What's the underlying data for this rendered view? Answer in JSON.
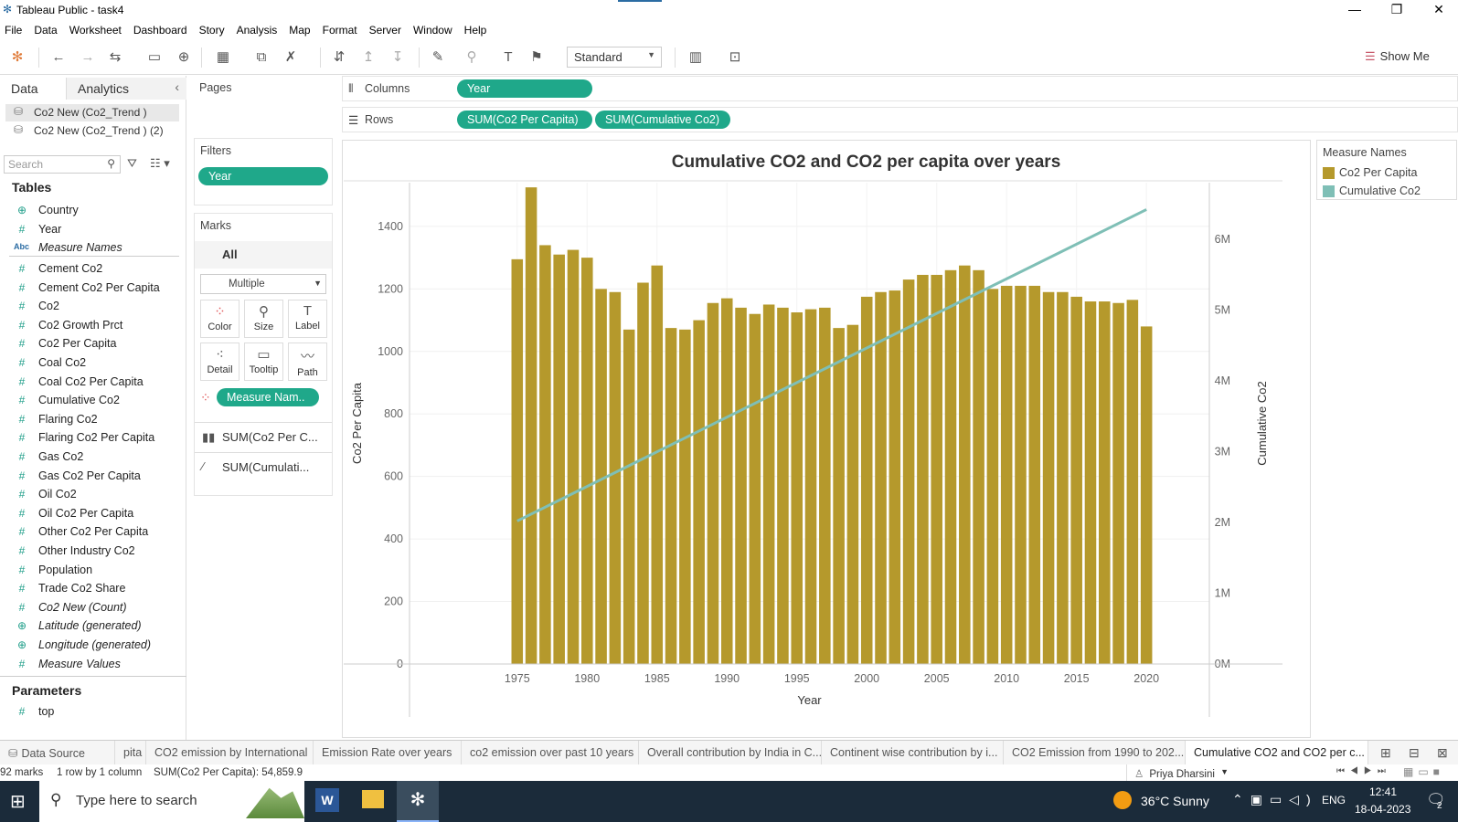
{
  "window": {
    "title": "Tableau Public - task4",
    "minimize": "—",
    "restore": "❐",
    "close": "✕"
  },
  "menu": [
    "File",
    "Data",
    "Worksheet",
    "Dashboard",
    "Story",
    "Analysis",
    "Map",
    "Format",
    "Server",
    "Window",
    "Help"
  ],
  "toolbar": {
    "fit": "Standard",
    "show_me": "Show Me"
  },
  "data_pane": {
    "tab_data": "Data",
    "tab_analytics": "Analytics",
    "sources": [
      "Co2 New (Co2_Trend )",
      "Co2 New (Co2_Trend ) (2)"
    ],
    "search_placeholder": "Search",
    "tables_header": "Tables",
    "dimensions": [
      {
        "name": "Country",
        "icon": "globe"
      },
      {
        "name": "Year",
        "icon": "#"
      },
      {
        "name": "Measure Names",
        "icon": "Abc",
        "italic": true
      }
    ],
    "measures": [
      {
        "name": "Cement Co2"
      },
      {
        "name": "Cement Co2 Per Capita"
      },
      {
        "name": "Co2"
      },
      {
        "name": "Co2 Growth Prct"
      },
      {
        "name": "Co2 Per Capita"
      },
      {
        "name": "Coal Co2"
      },
      {
        "name": "Coal Co2 Per Capita"
      },
      {
        "name": "Cumulative Co2"
      },
      {
        "name": "Flaring Co2"
      },
      {
        "name": "Flaring Co2 Per Capita"
      },
      {
        "name": "Gas Co2"
      },
      {
        "name": "Gas Co2 Per Capita"
      },
      {
        "name": "Oil Co2"
      },
      {
        "name": "Oil Co2 Per Capita"
      },
      {
        "name": "Other Co2 Per Capita"
      },
      {
        "name": "Other Industry Co2"
      },
      {
        "name": "Population"
      },
      {
        "name": "Trade Co2 Share"
      },
      {
        "name": "Co2 New (Count)",
        "italic": true
      },
      {
        "name": "Latitude (generated)",
        "italic": true,
        "icon": "globe"
      },
      {
        "name": "Longitude (generated)",
        "italic": true,
        "icon": "globe"
      },
      {
        "name": "Measure Values",
        "italic": true
      }
    ],
    "parameters_header": "Parameters",
    "parameters": [
      "top"
    ]
  },
  "cards": {
    "pages": "Pages",
    "filters": "Filters",
    "filter_pill": "Year",
    "marks": "Marks",
    "marks_all": "All",
    "mark_type": "Multiple",
    "buttons": [
      "Color",
      "Size",
      "Label",
      "Detail",
      "Tooltip",
      "Path"
    ],
    "color_pill": "Measure Nam..",
    "measure_rows": [
      "SUM(Co2 Per C...",
      "SUM(Cumulati..."
    ]
  },
  "shelves": {
    "columns_label": "Columns",
    "rows_label": "Rows",
    "columns_pill": "Year",
    "rows_pills": [
      "SUM(Co2 Per Capita)",
      "SUM(Cumulative Co2)"
    ]
  },
  "legend": {
    "title": "Measure Names",
    "items": [
      {
        "label": "Co2 Per Capita",
        "color": "#b5992c"
      },
      {
        "label": "Cumulative Co2",
        "color": "#7fbfb6"
      }
    ]
  },
  "chart_data": {
    "type": "bar",
    "title": "Cumulative CO2 and CO2 per capita over years",
    "xlabel": "Year",
    "ylabel": "Co2 Per Capita",
    "y2label": "Cumulative Co2",
    "x_ticks": [
      "1975",
      "1980",
      "1985",
      "1990",
      "1995",
      "2000",
      "2005",
      "2010",
      "2015",
      "2020"
    ],
    "y_ticks": [
      "0",
      "200",
      "400",
      "600",
      "800",
      "1000",
      "1200",
      "1400"
    ],
    "y2_ticks": [
      "0M",
      "1M",
      "2M",
      "3M",
      "4M",
      "5M",
      "6M"
    ],
    "ylim": [
      0,
      1540
    ],
    "y2lim": [
      0,
      6800000
    ],
    "grid": true,
    "colors": {
      "bar": "#b5992c",
      "line": "#7fbfb6"
    },
    "series": [
      {
        "name": "Co2 Per Capita",
        "type": "bar",
        "x": [
          1975,
          1976,
          1977,
          1978,
          1979,
          1980,
          1981,
          1982,
          1983,
          1984,
          1985,
          1986,
          1987,
          1988,
          1989,
          1990,
          1991,
          1992,
          1993,
          1994,
          1995,
          1996,
          1997,
          1998,
          1999,
          2000,
          2001,
          2002,
          2003,
          2004,
          2005,
          2006,
          2007,
          2008,
          2009,
          2010,
          2011,
          2012,
          2013,
          2014,
          2015,
          2016,
          2017,
          2018,
          2019,
          2020
        ],
        "values": [
          1295,
          1525,
          1340,
          1310,
          1325,
          1300,
          1200,
          1190,
          1070,
          1220,
          1275,
          1075,
          1070,
          1100,
          1155,
          1170,
          1140,
          1120,
          1150,
          1140,
          1125,
          1135,
          1140,
          1075,
          1085,
          1175,
          1190,
          1195,
          1230,
          1245,
          1245,
          1260,
          1275,
          1260,
          1200,
          1210,
          1210,
          1210,
          1190,
          1190,
          1175,
          1160,
          1160,
          1155,
          1165,
          1080
        ]
      },
      {
        "name": "Cumulative Co2",
        "type": "line",
        "x": [
          1975,
          2020
        ],
        "values": [
          2020000,
          6420000
        ]
      }
    ]
  },
  "sheet_tabs": [
    "Data Source",
    "pita",
    "CO2 emission by International",
    "Emission Rate over years",
    "co2 emission over past 10 years",
    "Overall contribution by India in C...",
    "Continent wise contribution by i...",
    "CO2 Emission from 1990 to 202...",
    "Cumulative CO2 and CO2 per c..."
  ],
  "status": {
    "marks": "92 marks",
    "dims": "1 row by 1 column",
    "sum": "SUM(Co2 Per Capita): 54,859.9",
    "user": "Priya Dharsini"
  },
  "taskbar": {
    "search_placeholder": "Type here to search",
    "weather": "36°C  Sunny",
    "lang": "ENG",
    "time": "12:41",
    "date": "18-04-2023",
    "notif": "2"
  }
}
